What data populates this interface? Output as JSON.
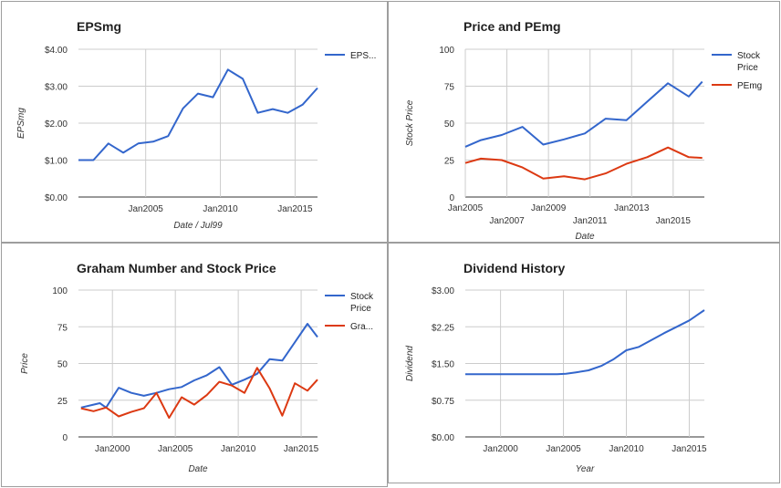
{
  "chart_data": [
    {
      "type": "line",
      "title": "EPSmg",
      "xlabel": "Date / Jul99",
      "ylabel": "EPSmg",
      "x_ticks": [
        "Jan2005",
        "Jan2010",
        "Jan2015"
      ],
      "x_tick_values": [
        2005,
        2010,
        2015
      ],
      "y_ticks": [
        "$0.00",
        "$1.00",
        "$2.00",
        "$3.00",
        "$4.00"
      ],
      "xlim": [
        2000.5,
        2016.5
      ],
      "ylim": [
        0,
        4
      ],
      "grid": true,
      "legend_position": "right",
      "colors": [
        "#3366cc"
      ],
      "series": [
        {
          "name": "EPS...",
          "x": [
            2000.5,
            2001.5,
            2002.5,
            2003.5,
            2004.5,
            2005.5,
            2006.5,
            2007.5,
            2008.5,
            2009.5,
            2010.5,
            2011.5,
            2012.5,
            2013.5,
            2014.5,
            2015.5,
            2016.5
          ],
          "values": [
            1.0,
            1.0,
            1.45,
            1.2,
            1.45,
            1.5,
            1.65,
            2.4,
            2.8,
            2.7,
            3.45,
            3.2,
            2.28,
            2.38,
            2.28,
            2.5,
            2.95
          ]
        }
      ]
    },
    {
      "type": "line",
      "title": "Price and PEmg",
      "xlabel": "Date",
      "ylabel": "Stock Price",
      "x_ticks": [
        "Jan2005",
        "Jan2007",
        "Jan2009",
        "Jan2011",
        "Jan2013",
        "Jan2015"
      ],
      "x_tick_values": [
        2005,
        2007,
        2009,
        2011,
        2013,
        2015
      ],
      "y_ticks": [
        "0",
        "25",
        "50",
        "75",
        "100"
      ],
      "xlim": [
        2005,
        2016.5
      ],
      "ylim": [
        0,
        100
      ],
      "grid": true,
      "legend_position": "right",
      "colors": [
        "#3366cc",
        "#dc3912"
      ],
      "series": [
        {
          "name": "Stock Price",
          "x": [
            2005,
            2005.75,
            2006.75,
            2007.75,
            2008.75,
            2009.75,
            2010.75,
            2011.75,
            2012.75,
            2013.75,
            2014.75,
            2015.75,
            2016.4
          ],
          "values": [
            34,
            38.5,
            42,
            47.5,
            35.5,
            39,
            43,
            53,
            52,
            64.5,
            77,
            68,
            78
          ]
        },
        {
          "name": "PEmg",
          "x": [
            2005,
            2005.75,
            2006.75,
            2007.75,
            2008.75,
            2009.75,
            2010.75,
            2011.75,
            2012.75,
            2013.75,
            2014.75,
            2015.75,
            2016.4
          ],
          "values": [
            23,
            26,
            25,
            20,
            12.5,
            14,
            12,
            16,
            22.5,
            27,
            33.5,
            27,
            26.5
          ]
        }
      ]
    },
    {
      "type": "line",
      "title": "Graham Number and Stock Price",
      "xlabel": "Date",
      "ylabel": "Price",
      "x_ticks": [
        "Jan2000",
        "Jan2005",
        "Jan2010",
        "Jan2015"
      ],
      "x_tick_values": [
        2000,
        2005,
        2010,
        2015
      ],
      "y_ticks": [
        "0",
        "25",
        "50",
        "75",
        "100"
      ],
      "xlim": [
        1997.3,
        2016.3
      ],
      "ylim": [
        0,
        100
      ],
      "grid": true,
      "legend_position": "right",
      "colors": [
        "#3366cc",
        "#dc3912"
      ],
      "series": [
        {
          "name": "Stock Price",
          "x": [
            1997.5,
            1998.5,
            1999,
            1999.5,
            2000.5,
            2001.5,
            2002.5,
            2003.5,
            2004.5,
            2005.5,
            2006.5,
            2007.5,
            2008.5,
            2009.5,
            2010.5,
            2011.5,
            2012.5,
            2013.5,
            2014.5,
            2015.5,
            2016.3
          ],
          "values": [
            20,
            22,
            23,
            20,
            33.5,
            30,
            28,
            30,
            32.5,
            34,
            38.5,
            42,
            47.5,
            35.5,
            39,
            43,
            53,
            52,
            64.5,
            77,
            68
          ]
        },
        {
          "name": "Gra...",
          "x": [
            1997.5,
            1998.5,
            1999.5,
            2000.5,
            2001.5,
            2002.5,
            2003.5,
            2004.5,
            2005.5,
            2006.5,
            2007.5,
            2008.5,
            2009.5,
            2010.5,
            2011.5,
            2012.5,
            2013.5,
            2014.5,
            2015.5,
            2016.3
          ],
          "values": [
            19.5,
            17.5,
            20,
            14,
            17,
            19.5,
            30,
            13,
            27,
            22,
            28.5,
            37.5,
            35,
            30,
            47,
            33,
            14.5,
            36.5,
            31.5,
            39
          ]
        }
      ]
    },
    {
      "type": "line",
      "title": "Dividend History",
      "xlabel": "Year",
      "ylabel": "Dividend",
      "x_ticks": [
        "Jan2000",
        "Jan2005",
        "Jan2010",
        "Jan2015"
      ],
      "x_tick_values": [
        2000,
        2005,
        2010,
        2015
      ],
      "y_ticks": [
        "$0.00",
        "$0.75",
        "$1.50",
        "$2.25",
        "$3.00"
      ],
      "xlim": [
        1997.2,
        2016.2
      ],
      "ylim": [
        0,
        3
      ],
      "grid": true,
      "legend_position": "none",
      "colors": [
        "#3366cc"
      ],
      "series": [
        {
          "x": [
            1997.2,
            1998.5,
            1999.5,
            2000.5,
            2001.5,
            2002.5,
            2003.5,
            2004.5,
            2005.2,
            2006,
            2007,
            2008,
            2009,
            2010,
            2011,
            2012,
            2013,
            2014,
            2015,
            2016.2
          ],
          "values": [
            1.28,
            1.28,
            1.28,
            1.28,
            1.28,
            1.28,
            1.28,
            1.28,
            1.29,
            1.32,
            1.36,
            1.45,
            1.59,
            1.77,
            1.84,
            1.98,
            2.12,
            2.25,
            2.38,
            2.59
          ]
        }
      ]
    }
  ]
}
